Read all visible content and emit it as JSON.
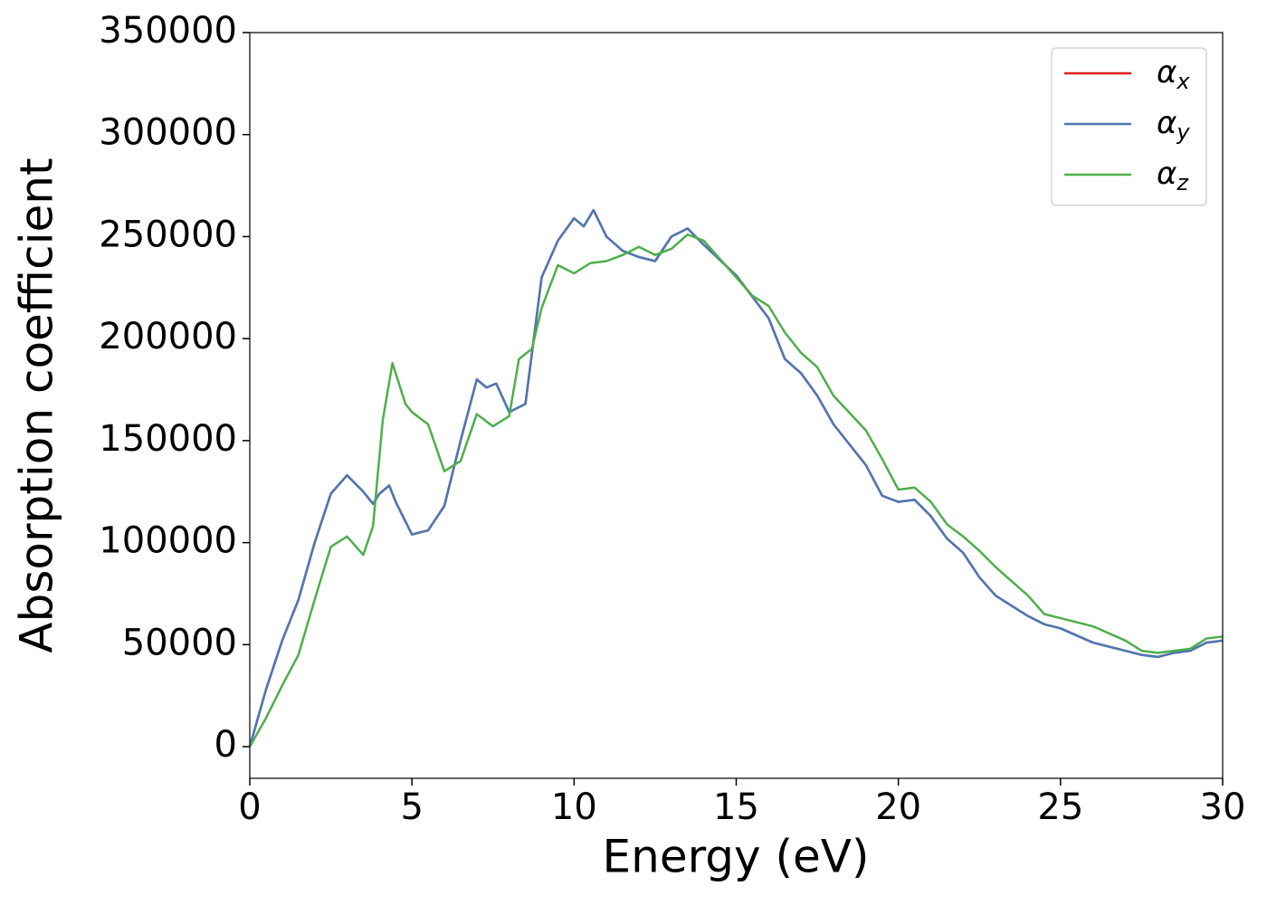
{
  "chart_data": {
    "type": "line",
    "xlabel": "Energy (eV)",
    "ylabel": "Absorption coefficient",
    "xlim": [
      0,
      30
    ],
    "ylim": [
      -15500,
      350000
    ],
    "xticks": [
      0,
      5,
      10,
      15,
      20,
      25,
      30
    ],
    "yticks": [
      0,
      50000,
      100000,
      150000,
      200000,
      250000,
      300000,
      350000
    ],
    "legend": "upper right",
    "series": [
      {
        "name": "α_x",
        "color": "#e41a1c",
        "x": [
          0,
          0.5,
          1,
          1.5,
          2,
          2.5,
          3,
          3.5,
          3.8,
          4,
          4.3,
          4.5,
          5,
          5.5,
          6,
          6.5,
          7,
          7.3,
          7.6,
          8,
          8.5,
          9,
          9.5,
          10,
          10.3,
          10.6,
          11,
          11.5,
          12,
          12.5,
          13,
          13.5,
          14,
          15,
          16,
          16.5,
          17,
          17.5,
          18,
          19,
          19.5,
          20,
          20.5,
          21,
          21.5,
          22,
          22.5,
          23,
          24,
          24.5,
          25,
          26,
          27,
          27.5,
          28,
          28.5,
          29,
          29.5,
          30
        ],
        "values": [
          0,
          28000,
          52000,
          72000,
          100000,
          124000,
          133000,
          125000,
          119000,
          124000,
          128000,
          120000,
          104000,
          106000,
          118000,
          150000,
          180000,
          176000,
          178000,
          164000,
          168000,
          230000,
          248000,
          259000,
          255000,
          263000,
          250000,
          243000,
          240000,
          238000,
          250000,
          254000,
          246000,
          231000,
          210000,
          190000,
          183000,
          172000,
          158000,
          138000,
          123000,
          120000,
          121000,
          113000,
          102000,
          95000,
          83000,
          74000,
          64000,
          60000,
          58000,
          51000,
          47000,
          45000,
          44000,
          46000,
          47000,
          51000,
          52000
        ]
      },
      {
        "name": "α_y",
        "color": "#4a79b4",
        "x": [
          0,
          0.5,
          1,
          1.5,
          2,
          2.5,
          3,
          3.5,
          3.8,
          4,
          4.3,
          4.5,
          5,
          5.5,
          6,
          6.5,
          7,
          7.3,
          7.6,
          8,
          8.5,
          9,
          9.5,
          10,
          10.3,
          10.6,
          11,
          11.5,
          12,
          12.5,
          13,
          13.5,
          14,
          15,
          16,
          16.5,
          17,
          17.5,
          18,
          19,
          19.5,
          20,
          20.5,
          21,
          21.5,
          22,
          22.5,
          23,
          24,
          24.5,
          25,
          26,
          27,
          27.5,
          28,
          28.5,
          29,
          29.5,
          30
        ],
        "values": [
          0,
          28000,
          52000,
          72000,
          100000,
          124000,
          133000,
          125000,
          119000,
          124000,
          128000,
          120000,
          104000,
          106000,
          118000,
          150000,
          180000,
          176000,
          178000,
          164000,
          168000,
          230000,
          248000,
          259000,
          255000,
          263000,
          250000,
          243000,
          240000,
          238000,
          250000,
          254000,
          246000,
          231000,
          210000,
          190000,
          183000,
          172000,
          158000,
          138000,
          123000,
          120000,
          121000,
          113000,
          102000,
          95000,
          83000,
          74000,
          64000,
          60000,
          58000,
          51000,
          47000,
          45000,
          44000,
          46000,
          47000,
          51000,
          52000
        ]
      },
      {
        "name": "α_z",
        "color": "#4daf4a",
        "x": [
          0,
          0.5,
          1,
          1.5,
          2,
          2.5,
          3,
          3.5,
          3.8,
          4.1,
          4.4,
          4.8,
          5,
          5.5,
          6,
          6.5,
          7,
          7.5,
          8,
          8.3,
          8.7,
          9,
          9.5,
          10,
          10.5,
          11,
          11.5,
          12,
          12.5,
          13,
          13.5,
          14,
          15,
          15.5,
          16,
          16.5,
          17,
          17.5,
          18,
          19,
          19.5,
          20,
          20.5,
          21,
          21.5,
          22,
          22.5,
          23,
          24,
          24.5,
          25,
          26,
          27,
          27.5,
          28,
          29,
          29.5,
          30
        ],
        "values": [
          0,
          14000,
          30000,
          45000,
          72000,
          98000,
          103000,
          94000,
          108000,
          160000,
          188000,
          168000,
          164000,
          158000,
          135000,
          140000,
          163000,
          157000,
          162000,
          190000,
          195000,
          215000,
          236000,
          232000,
          237000,
          238000,
          241000,
          245000,
          241000,
          244000,
          251000,
          248000,
          230000,
          221000,
          216000,
          203000,
          193000,
          186000,
          172000,
          155000,
          141000,
          126000,
          127000,
          120000,
          109000,
          103000,
          96000,
          88000,
          74000,
          65000,
          63000,
          59000,
          52000,
          47000,
          46000,
          48000,
          53000,
          54000
        ]
      }
    ]
  }
}
